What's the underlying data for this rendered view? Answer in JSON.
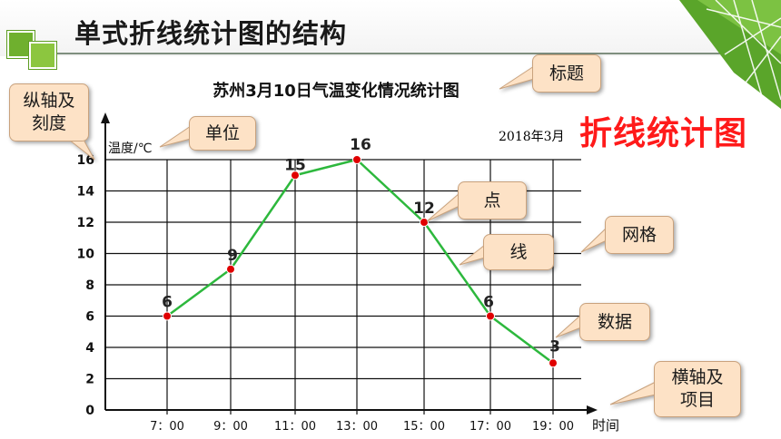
{
  "page_title": "单式折线统计图的结构",
  "big_caption": "折线统计图",
  "date_note": "2018年3月",
  "callouts": {
    "title": "标题",
    "y_axis": "纵轴及\n刻度",
    "unit": "单位",
    "point": "点",
    "line": "线",
    "grid": "网格",
    "data": "数据",
    "x_axis": "横轴及\n项目"
  },
  "colors": {
    "accent_green": "#8cc63f",
    "line": "#2db83d",
    "point": "#e00000",
    "callout_fill": "#fde2c6",
    "caption_red": "#ff1a1a"
  },
  "chart_data": {
    "type": "line",
    "title": "苏州3月10日气温变化情况统计图",
    "ylabel": "温度/℃",
    "xlabel": "时间",
    "categories": [
      "7：00",
      "9：00",
      "11：00",
      "13：00",
      "15：00",
      "17：00",
      "19：00"
    ],
    "values": [
      6,
      9,
      15,
      16,
      12,
      6,
      3
    ],
    "yticks": [
      "0",
      "2",
      "4",
      "6",
      "8",
      "10",
      "12",
      "14",
      "16"
    ],
    "ylim": [
      0,
      16
    ],
    "grid": true
  }
}
